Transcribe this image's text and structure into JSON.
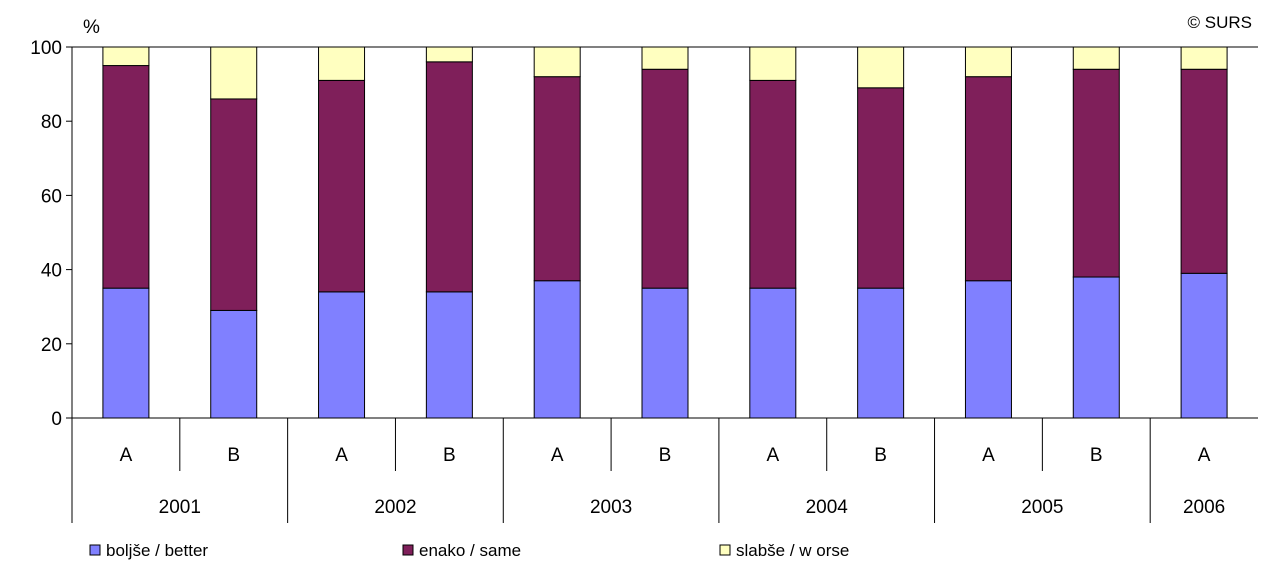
{
  "chart_data": {
    "type": "bar",
    "stacked": true,
    "ylabel": "%",
    "ylim": [
      0,
      100
    ],
    "yticks": [
      0,
      20,
      40,
      60,
      80,
      100
    ],
    "grid": false,
    "legend_position": "bottom",
    "copyright": "© SURS",
    "categories": [
      "A",
      "B",
      "A",
      "B",
      "A",
      "B",
      "A",
      "B",
      "A",
      "B",
      "A"
    ],
    "groups": [
      {
        "label": "2001",
        "count": 2
      },
      {
        "label": "2002",
        "count": 2
      },
      {
        "label": "2003",
        "count": 2
      },
      {
        "label": "2004",
        "count": 2
      },
      {
        "label": "2005",
        "count": 2
      },
      {
        "label": "2006",
        "count": 1
      }
    ],
    "series": [
      {
        "name": "boljše / better",
        "color": "#8080ff",
        "values": [
          35,
          29,
          34,
          34,
          37,
          35,
          35,
          35,
          37,
          38,
          39
        ]
      },
      {
        "name": "enako / same",
        "color": "#7f1f5a",
        "values": [
          60,
          57,
          57,
          62,
          55,
          59,
          56,
          54,
          55,
          56,
          55
        ]
      },
      {
        "name": "slabše / w orse",
        "color": "#ffffc0",
        "values": [
          5,
          14,
          9,
          4,
          8,
          6,
          9,
          11,
          8,
          6,
          6
        ]
      }
    ]
  }
}
